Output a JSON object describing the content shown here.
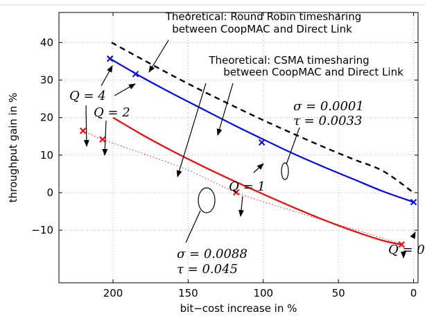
{
  "chart_data": {
    "type": "line",
    "title": "",
    "xlabel": "bit−cost increase in %",
    "ylabel": "throughput gain in %",
    "xlim": [
      236,
      -3
    ],
    "ylim": [
      -24,
      48
    ],
    "x_reversed": true,
    "grid": true,
    "x_ticks": [
      200,
      150,
      100,
      50,
      0
    ],
    "x_tick_labels": [
      "200",
      "150",
      "100",
      "50",
      "0"
    ],
    "y_ticks": [
      -10,
      0,
      10,
      20,
      30,
      40
    ],
    "y_tick_labels": [
      "−10",
      "0",
      "10",
      "20",
      "30",
      "40"
    ],
    "series": [
      {
        "key": "round_robin",
        "color": "#000000",
        "style": "dashed",
        "x": [
          201,
          180,
          160,
          140,
          120,
          100,
          80,
          60,
          40,
          20,
          0
        ],
        "y": [
          40,
          35.4,
          31.1,
          27,
          23.1,
          19.3,
          15.7,
          12.2,
          8.9,
          5.7,
          0
        ]
      },
      {
        "key": "csma_blue",
        "color": "#0000ff",
        "style": "solid",
        "x": [
          202,
          180,
          160,
          140,
          120,
          100,
          80,
          60,
          40,
          20,
          0
        ],
        "y": [
          35.7,
          30.6,
          26.3,
          22.2,
          18.1,
          14.2,
          10.4,
          6.9,
          3.6,
          0.3,
          -2.5
        ]
      },
      {
        "key": "csma_red",
        "color": "#ff0000",
        "style": "solid",
        "x": [
          200,
          180,
          160,
          140,
          120,
          100,
          80,
          60,
          40,
          20,
          8
        ],
        "y": [
          20,
          15.3,
          11,
          7,
          3.2,
          -0.4,
          -3.9,
          -7.2,
          -10.2,
          -12.8,
          -13.8
        ]
      },
      {
        "key": "red_dotted",
        "color": "#ff0000",
        "style": "dotted",
        "x": [
          220,
          207,
          180,
          150,
          118,
          80,
          50,
          20,
          8
        ],
        "y": [
          16.5,
          14.2,
          10.4,
          6,
          0.1,
          -4.9,
          -8.5,
          -12.2,
          -13.8
        ]
      }
    ],
    "markers": [
      {
        "series": "csma_blue",
        "x": 202,
        "y": 35.7,
        "color": "#0000ff"
      },
      {
        "series": "csma_blue",
        "x": 185,
        "y": 31.6,
        "color": "#0000ff"
      },
      {
        "series": "csma_blue",
        "x": 101,
        "y": 13.4,
        "color": "#0000ff"
      },
      {
        "series": "csma_blue",
        "x": 0,
        "y": -2.5,
        "color": "#0000ff"
      },
      {
        "series": "red_dotted",
        "x": 220,
        "y": 16.5,
        "color": "#ff0000"
      },
      {
        "series": "red_dotted",
        "x": 207,
        "y": 14.2,
        "color": "#ff0000"
      },
      {
        "series": "red_dotted",
        "x": 118,
        "y": 0.1,
        "color": "#ff0000"
      },
      {
        "series": "red_dotted",
        "x": 8,
        "y": -13.8,
        "color": "#ff0000"
      }
    ],
    "annotations": {
      "rr_line1": "Theoretical: Round Robin timesharing",
      "rr_line2": "between CoopMAC and Direct Link",
      "csma_line1": "Theoretical: CSMA timesharing",
      "csma_line2": "between CoopMAC and Direct Link",
      "q4": "Q = 4",
      "q2": "Q = 2",
      "q1": "Q = 1",
      "q0": "Q = 0",
      "sigma_blue": "σ = 0.0001",
      "tau_blue": "τ = 0.0033",
      "sigma_red": "σ = 0.0088",
      "tau_red": "τ = 0.045"
    }
  }
}
